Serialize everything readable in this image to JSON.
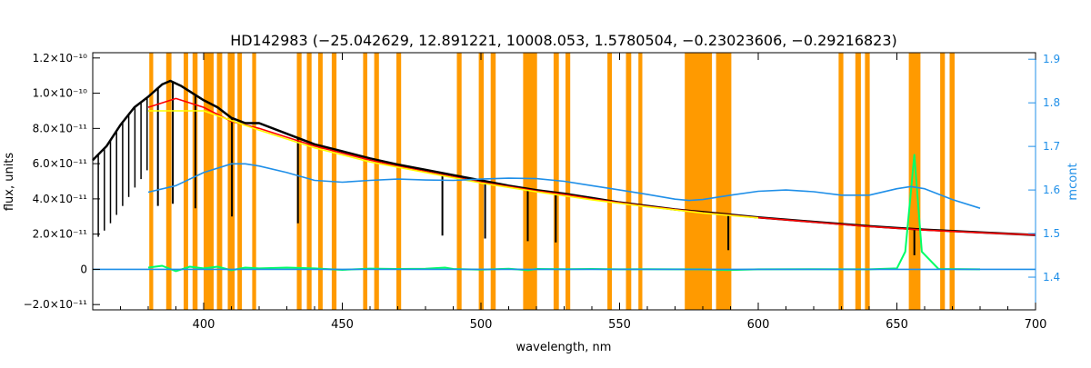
{
  "chart_data": {
    "type": "line",
    "title": "HD142983   (−25.042629, 12.891221, 10008.053, 1.5780504, −0.23023606, −0.29216823)",
    "xlabel": "wavelength, nm",
    "ylabel_left": "flux, units",
    "ylabel_right": "mcont",
    "xlim": [
      360,
      700
    ],
    "ylim_left": [
      -2.3e-11,
      1.23e-10
    ],
    "ylim_right": [
      1.325,
      1.915
    ],
    "x_ticks": [
      400,
      450,
      500,
      550,
      600,
      650,
      700
    ],
    "y_left_ticks": [
      {
        "value": -2e-11,
        "label": "−2.0×10⁻¹¹"
      },
      {
        "value": 0,
        "label": "0"
      },
      {
        "value": 2e-11,
        "label": "2.0×10⁻¹¹"
      },
      {
        "value": 4e-11,
        "label": "4.0×10⁻¹¹"
      },
      {
        "value": 6e-11,
        "label": "6.0×10⁻¹¹"
      },
      {
        "value": 8e-11,
        "label": "8.0×10⁻¹¹"
      },
      {
        "value": 1e-10,
        "label": "1.0×10⁻¹⁰"
      },
      {
        "value": 1.2e-10,
        "label": "1.2×10⁻¹⁰"
      }
    ],
    "y_right_ticks": [
      1.4,
      1.5,
      1.6,
      1.7,
      1.8,
      1.9
    ],
    "masked_bands_nm": [
      [
        380.4,
        381.8
      ],
      [
        386.5,
        388.4
      ],
      [
        392.8,
        394.4
      ],
      [
        396.0,
        397.8
      ],
      [
        400.0,
        403.6
      ],
      [
        404.8,
        406.7
      ],
      [
        408.7,
        411.2
      ],
      [
        412.2,
        413.8
      ],
      [
        417.5,
        418.9
      ],
      [
        433.6,
        435.3
      ],
      [
        437.2,
        438.9
      ],
      [
        441.3,
        442.9
      ],
      [
        446.2,
        447.9
      ],
      [
        457.5,
        459.0
      ],
      [
        461.5,
        463.2
      ],
      [
        469.5,
        471.2
      ],
      [
        491.3,
        493.0
      ],
      [
        499.2,
        501.0
      ],
      [
        503.5,
        505.3
      ],
      [
        515.2,
        520.2
      ],
      [
        526.2,
        528.1
      ],
      [
        530.5,
        532.2
      ],
      [
        545.6,
        547.2
      ],
      [
        552.3,
        554.2
      ],
      [
        556.8,
        558.2
      ],
      [
        573.5,
        583.3
      ],
      [
        584.8,
        590.3
      ],
      [
        629.0,
        630.7
      ],
      [
        635.0,
        637.0
      ],
      [
        638.5,
        640.2
      ],
      [
        654.3,
        658.5
      ],
      [
        665.6,
        667.3
      ],
      [
        669.0,
        670.8
      ]
    ],
    "absorption_lines_nm": [
      383.5,
      388.9,
      397.0,
      410.2,
      434.0,
      486.1,
      501.5,
      516.9,
      527.0,
      589.2,
      656.3
    ],
    "series": [
      {
        "color": "#000000",
        "axis": "left",
        "x": [
          360,
          365,
          370,
          375,
          380,
          385,
          388,
          392,
          396,
          400,
          405,
          410,
          415,
          420,
          430,
          440,
          450,
          460,
          470,
          480,
          490,
          500,
          510,
          520,
          530,
          540,
          550,
          560,
          570,
          580,
          590,
          600,
          620,
          640,
          650,
          660,
          680,
          700
        ],
        "values": [
          6.2e-11,
          7e-11,
          8.2e-11,
          9.2e-11,
          9.8e-11,
          1.05e-10,
          1.07e-10,
          1.04e-10,
          1e-10,
          9.6e-11,
          9.2e-11,
          8.6e-11,
          8.3e-11,
          8.3e-11,
          7.7e-11,
          7.1e-11,
          6.7e-11,
          6.3e-11,
          5.95e-11,
          5.65e-11,
          5.35e-11,
          5.05e-11,
          4.75e-11,
          4.5e-11,
          4.3e-11,
          4.05e-11,
          3.8e-11,
          3.6e-11,
          3.4e-11,
          3.25e-11,
          3.1e-11,
          2.95e-11,
          2.7e-11,
          2.45e-11,
          2.35e-11,
          2.25e-11,
          2.1e-11,
          1.95e-11
        ]
      },
      {
        "color": "#ff0000",
        "axis": "left",
        "x": [
          380,
          390,
          400,
          410,
          420,
          430,
          440,
          450,
          460,
          470,
          480,
          490,
          500,
          510,
          520,
          530,
          540,
          550,
          560,
          570,
          580,
          590,
          600,
          620,
          640,
          660,
          680,
          700
        ],
        "values": [
          9.2e-11,
          9.7e-11,
          9.2e-11,
          8.4e-11,
          8e-11,
          7.5e-11,
          7e-11,
          6.6e-11,
          6.2e-11,
          5.85e-11,
          5.55e-11,
          5.25e-11,
          4.95e-11,
          4.7e-11,
          4.45e-11,
          4.25e-11,
          4e-11,
          3.78e-11,
          3.58e-11,
          3.4e-11,
          3.22e-11,
          3.08e-11,
          2.93e-11,
          2.68e-11,
          2.43e-11,
          2.23e-11,
          2.08e-11,
          1.95e-11
        ]
      },
      {
        "color": "#ffff00",
        "axis": "left",
        "x": [
          380,
          400,
          420,
          440,
          460,
          480,
          500,
          520,
          540,
          560,
          580,
          600
        ],
        "values": [
          9e-11,
          9e-11,
          7.9e-11,
          6.9e-11,
          6.1e-11,
          5.5e-11,
          4.9e-11,
          4.4e-11,
          3.95e-11,
          3.55e-11,
          3.2e-11,
          2.92e-11
        ]
      },
      {
        "color": "#00ff66",
        "axis": "left",
        "x": [
          380,
          385,
          390,
          395,
          400,
          405,
          410,
          415,
          420,
          430,
          440,
          450,
          460,
          470,
          480,
          487,
          490,
          500,
          510,
          517,
          520,
          530,
          540,
          550,
          560,
          570,
          580,
          589,
          600,
          620,
          640,
          650,
          653,
          656.3,
          659,
          665,
          680
        ],
        "values": [
          1e-12,
          2e-12,
          -1e-12,
          1.5e-12,
          5e-13,
          1.5e-12,
          -5e-13,
          1e-12,
          5e-13,
          1e-12,
          5e-13,
          -3e-13,
          4e-13,
          2e-13,
          3e-13,
          1e-12,
          2e-13,
          -2e-13,
          3e-13,
          -5e-13,
          2e-13,
          1e-13,
          2e-13,
          0.0,
          1e-13,
          0.0,
          0.0,
          -4e-13,
          0.0,
          1e-13,
          0.0,
          5e-13,
          1e-11,
          6.5e-11,
          1e-11,
          2e-13,
          0.0
        ]
      },
      {
        "color": "#1f8fe8",
        "axis": "right",
        "x": [
          380,
          390,
          400,
          410,
          415,
          420,
          430,
          440,
          450,
          460,
          470,
          480,
          490,
          500,
          510,
          520,
          530,
          540,
          550,
          560,
          570,
          575,
          580,
          590,
          600,
          610,
          620,
          630,
          640,
          650,
          655,
          660,
          670,
          680
        ],
        "values": [
          1.595,
          1.61,
          1.64,
          1.66,
          1.66,
          1.655,
          1.64,
          1.622,
          1.618,
          1.622,
          1.625,
          1.623,
          1.622,
          1.625,
          1.627,
          1.626,
          1.62,
          1.61,
          1.6,
          1.59,
          1.579,
          1.576,
          1.578,
          1.588,
          1.597,
          1.6,
          1.596,
          1.588,
          1.588,
          1.603,
          1.608,
          1.603,
          1.578,
          1.558
        ]
      },
      {
        "color": "#1f8fe8",
        "axis": "left",
        "x": [
          360,
          700
        ],
        "values": [
          0,
          0
        ]
      }
    ]
  }
}
